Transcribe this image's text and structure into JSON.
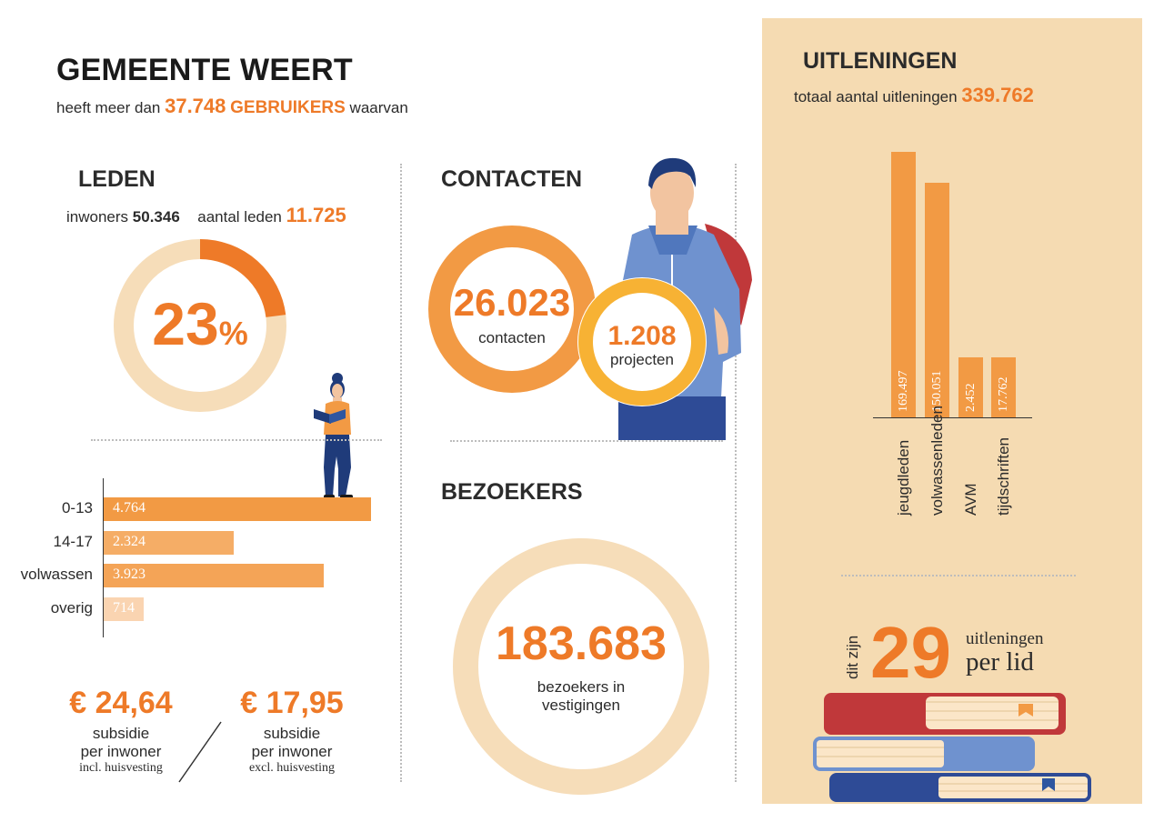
{
  "header": {
    "title": "GEMEENTE WEERT",
    "subtitle_pre": "heeft meer dan",
    "users_value": "37.748",
    "users_label": "GEBRUIKERS",
    "subtitle_post": "waarvan"
  },
  "leden": {
    "title": "LEDEN",
    "inwoners_label": "inwoners",
    "inwoners_value": "50.346",
    "aantal_label": "aantal leden",
    "aantal_value": "11.725",
    "percent_value": "23",
    "percent_sign": "%",
    "percent_fraction": 0.23
  },
  "age_chart": {
    "type": "bar",
    "categories": [
      "0-13",
      "14-17",
      "volwassen",
      "overig"
    ],
    "values": [
      4764,
      2324,
      3923,
      714
    ],
    "value_labels": [
      "4.764",
      "2.324",
      "3.923",
      "714"
    ],
    "colors": [
      "#f29a44",
      "#f5ad66",
      "#f4a457",
      "#fad4b1"
    ]
  },
  "subsidie": {
    "incl_value": "€ 24,64",
    "incl_line1": "subsidie",
    "incl_line2": "per inwoner",
    "incl_line3": "incl. huisvesting",
    "excl_value": "€ 17,95",
    "excl_line1": "subsidie",
    "excl_line2": "per inwoner",
    "excl_line3": "excl. huisvesting"
  },
  "contacten": {
    "title": "CONTACTEN",
    "contacts_value": "26.023",
    "contacts_label": "contacten",
    "projects_value": "1.208",
    "projects_label": "projecten"
  },
  "bezoekers": {
    "title": "BEZOEKERS",
    "value": "183.683",
    "label_line1": "bezoekers in",
    "label_line2": "vestigingen"
  },
  "uitleningen": {
    "title": "UITLENINGEN",
    "total_label": "totaal aantal uitleningen",
    "total_value": "339.762",
    "per_lid_prefix": "dit zijn",
    "per_lid_value": "29",
    "per_lid_line1": "uitleningen",
    "per_lid_line2": "per lid"
  },
  "chart_data": {
    "type": "bar",
    "categories": [
      "jeugdleden",
      "volwassenleden",
      "AVM",
      "tijdschriften"
    ],
    "values": [
      169497,
      150051,
      2452,
      17762
    ],
    "value_labels": [
      "169.497",
      "150.051",
      "2.452",
      "17.762"
    ]
  },
  "colors": {
    "accent": "#ee7a28",
    "bar_orange": "#f29a44",
    "panel_bg": "#f5dbb2",
    "ring_light": "#f6ddb9",
    "ring_dark": "#ee7a28",
    "ring_yellow": "#f7b234"
  }
}
